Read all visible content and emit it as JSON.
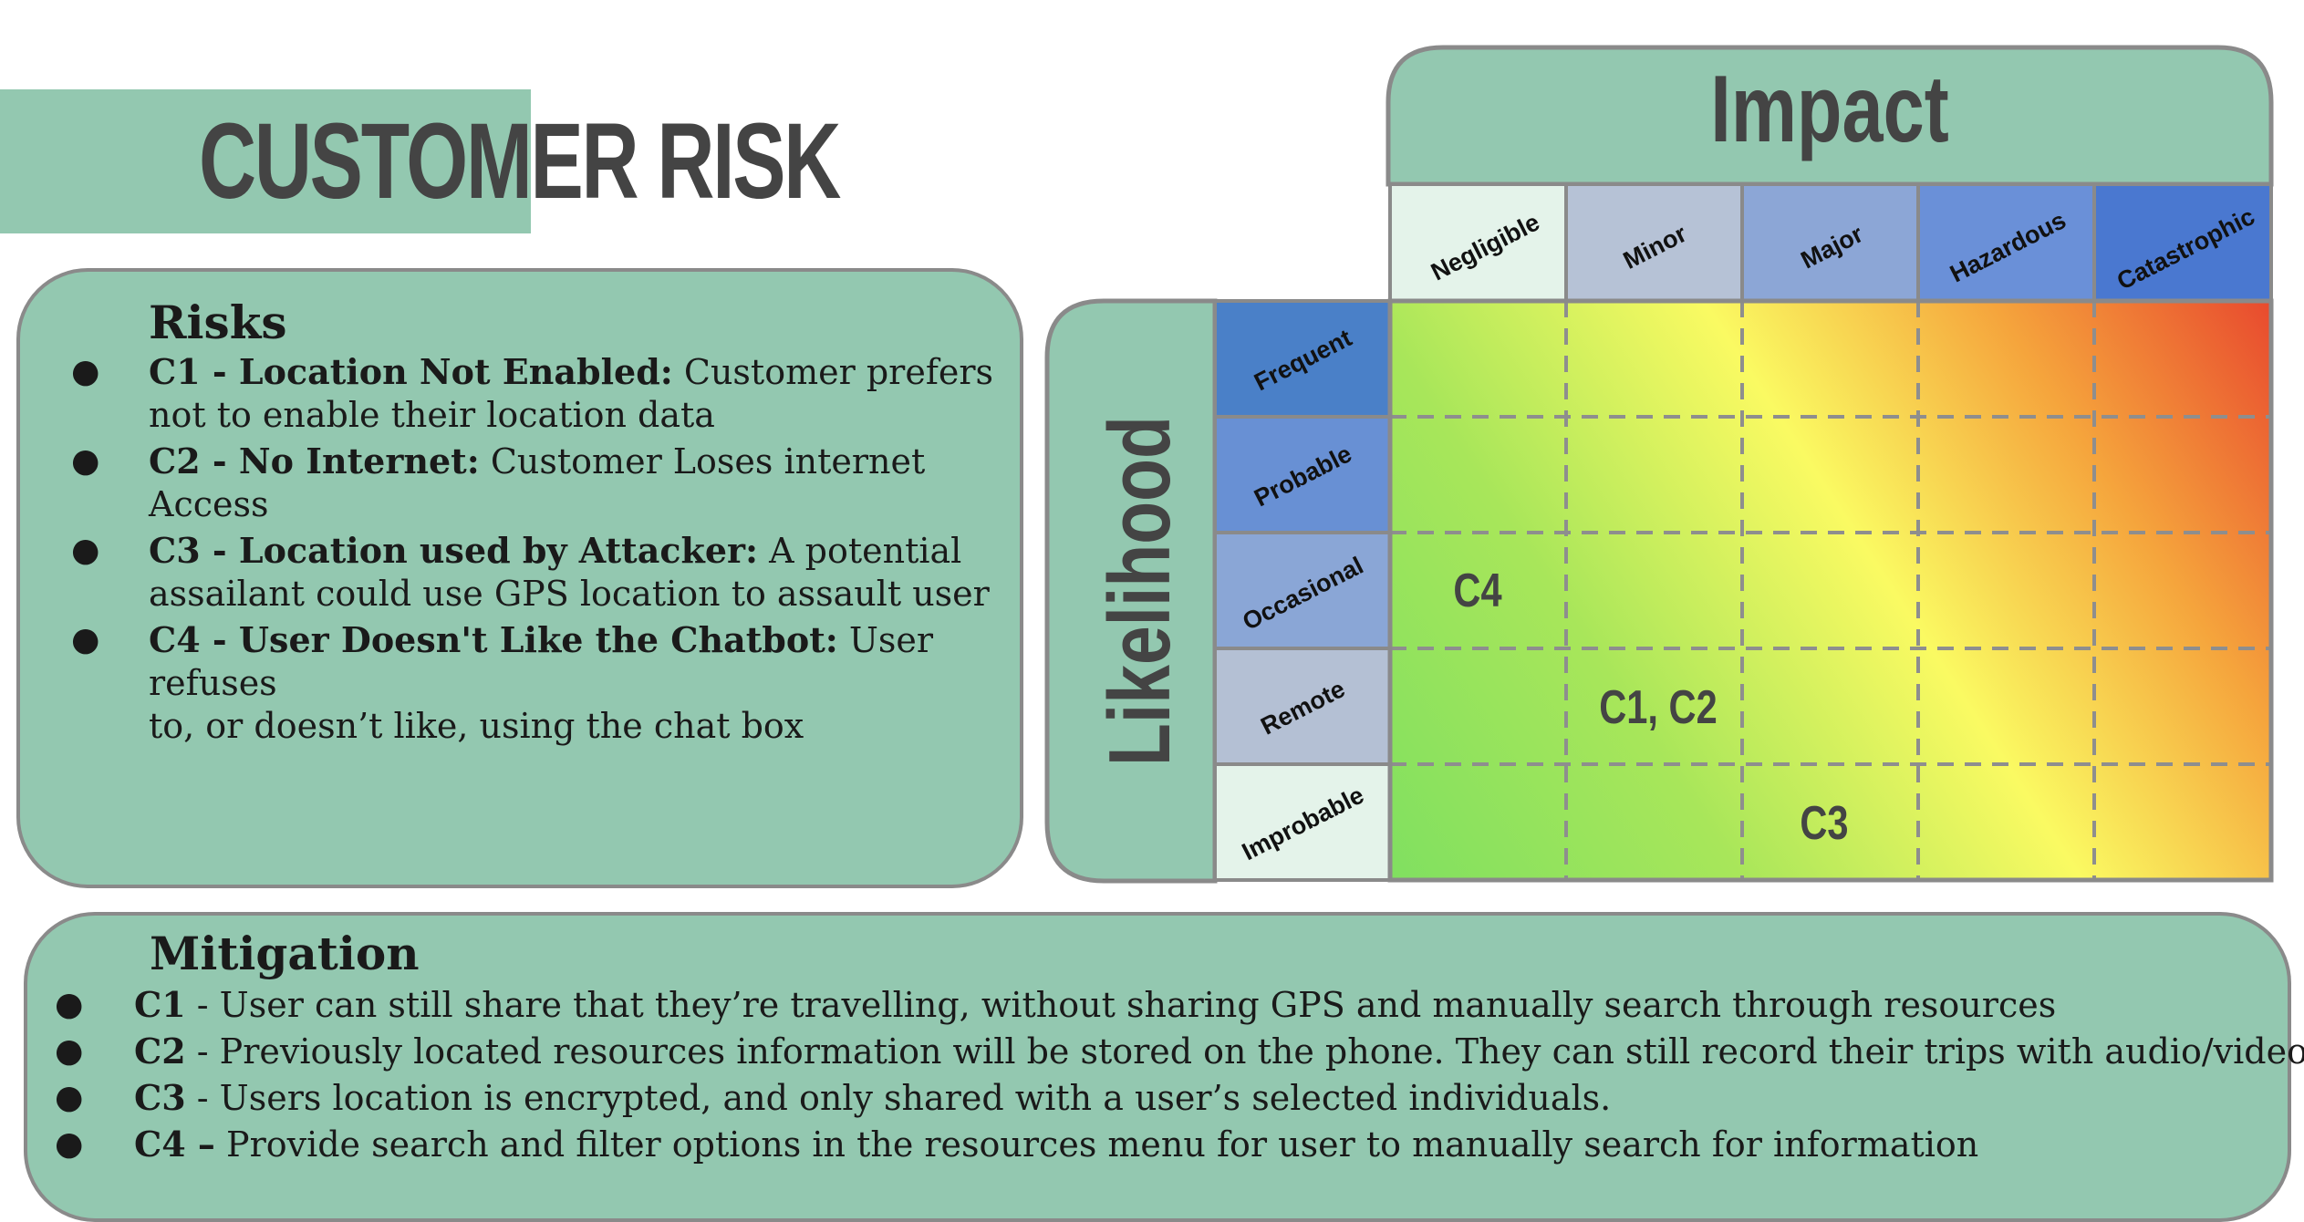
{
  "title": "CUSTOMER RISK",
  "risks": {
    "heading": "Risks",
    "items": [
      {
        "id": "C1 - Location Not Enabled:",
        "line1": " Customer prefers",
        "line2": "not to enable their location data"
      },
      {
        "id": "C2 - No Internet:",
        "line1": " Customer Loses internet",
        "line2": "Access"
      },
      {
        "id": "C3 - Location used by Attacker:",
        "line1": " A potential",
        "line2": "assailant could use GPS location to assault user"
      },
      {
        "id": "C4 - User Doesn't Like the Chatbot:",
        "line1": " User refuses",
        "line2": "to, or doesn’t like, using the chat box"
      }
    ]
  },
  "mitigation": {
    "heading": "Mitigation",
    "items": [
      {
        "id": "C1",
        "text": " - User can still share that they’re travelling, without sharing GPS and manually search through resources"
      },
      {
        "id": "C2",
        "text": " - Previously located resources information will be stored on the phone. They can still record their trips with audio/video"
      },
      {
        "id": "C3",
        "text": " - Users location is encrypted, and only shared with a user’s selected individuals."
      },
      {
        "id": "C4 –",
        "text": " Provide search and filter options in the resources menu for user to manually search for information"
      }
    ]
  },
  "matrix": {
    "impact_title": "Impact",
    "likelihood_title": "Likelihood",
    "impact_levels": [
      "Negligible",
      "Minor",
      "Major",
      "Hazardous",
      "Catastrophic"
    ],
    "likelihood_levels": [
      "Frequent",
      "Probable",
      "Occasional",
      "Remote",
      "Improbable"
    ],
    "placements": [
      {
        "label": "C4",
        "likelihood": "Occasional",
        "impact": "Negligible"
      },
      {
        "label": "C1, C2",
        "likelihood": "Remote",
        "impact": "Minor"
      },
      {
        "label": "C3",
        "likelihood": "Improbable",
        "impact": "Major"
      }
    ],
    "colors": {
      "panel": "#93c8b0",
      "border": "#8a8a8a",
      "impact_header": [
        "#e4f3ea",
        "#b6c2d6",
        "#8ca6d6",
        "#6a90d8",
        "#4a78d0"
      ],
      "likelihood_header": [
        "#4a80c8",
        "#6890d4",
        "#8aa6d6",
        "#b4c0d4",
        "#e4f3ea"
      ],
      "gradient": [
        "#e84a2e",
        "#f5a43c",
        "#fafa62",
        "#80e060"
      ]
    }
  }
}
